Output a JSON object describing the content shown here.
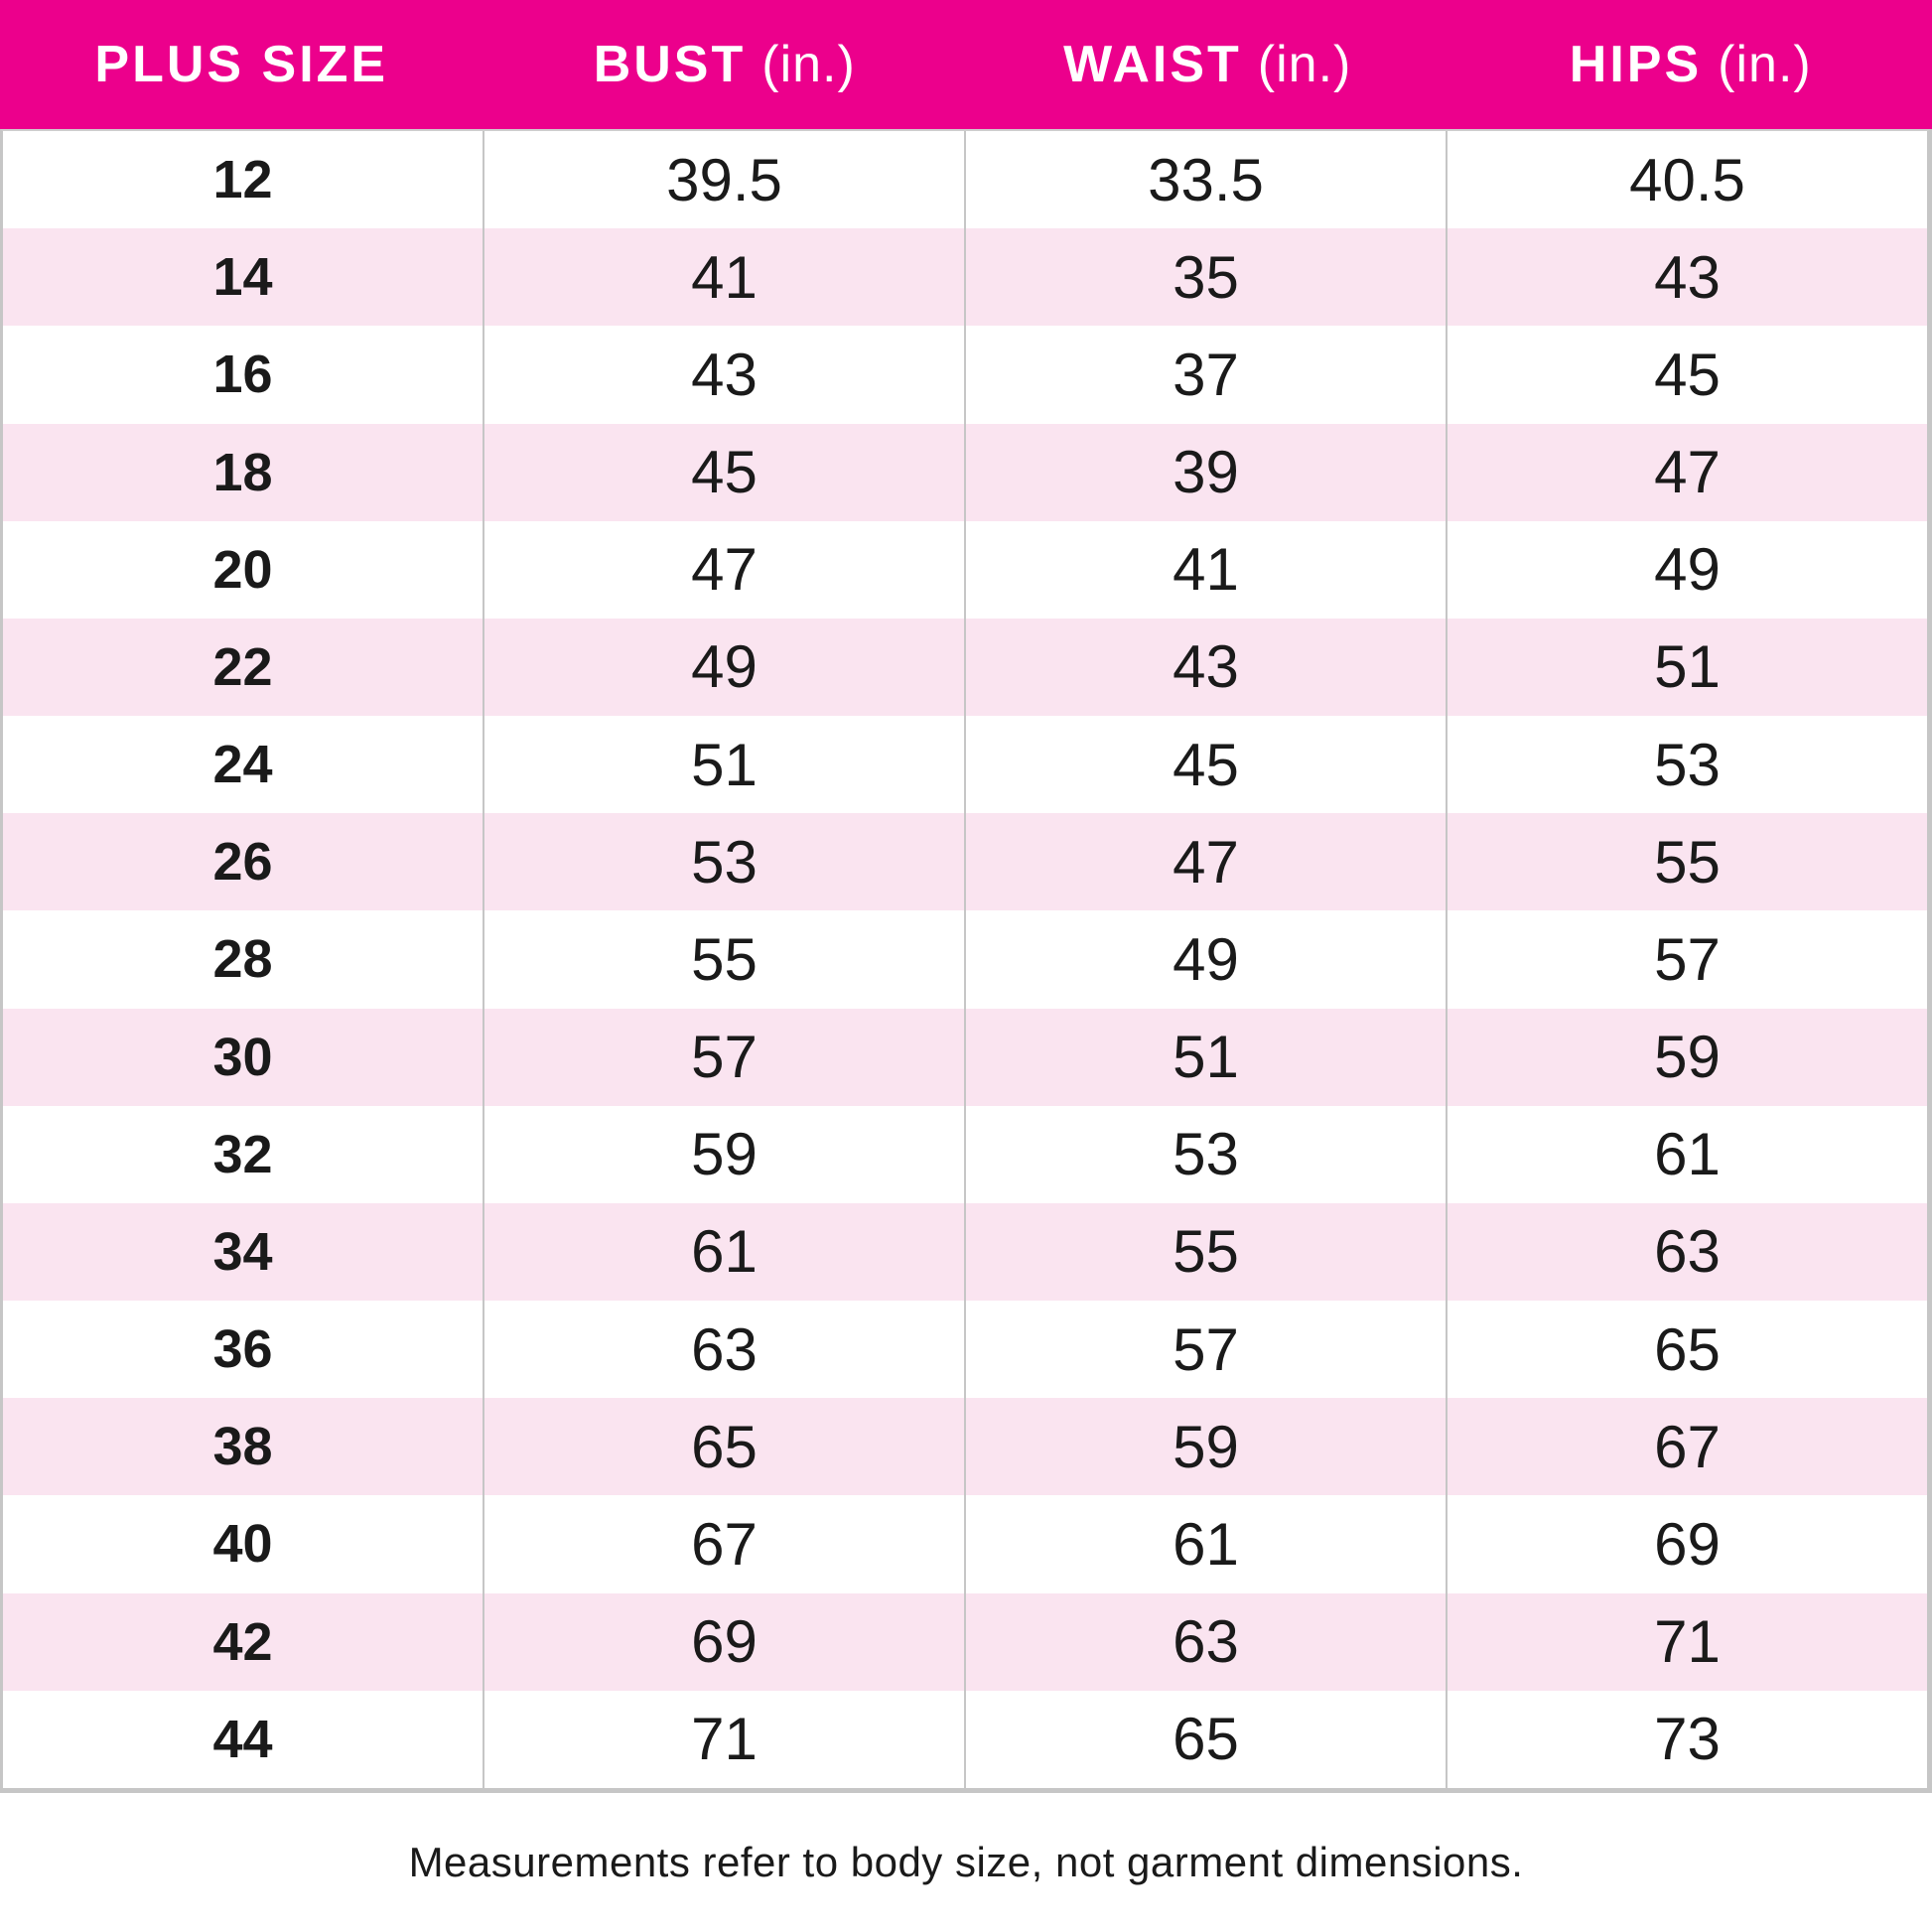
{
  "table": {
    "headers": [
      {
        "label": "PLUS SIZE",
        "unit": ""
      },
      {
        "label": "BUST",
        "unit": "(in.)"
      },
      {
        "label": "WAIST",
        "unit": "(in.)"
      },
      {
        "label": "HIPS",
        "unit": "(in.)"
      }
    ]
  },
  "footer": {
    "note": "Measurements refer to body size, not garment dimensions."
  },
  "colors": {
    "header_bg": "#EC008C",
    "header_text": "#FFFFFF",
    "row_alt_bg": "#FAE4F0",
    "divider": "#C6C6C6",
    "text": "#1A1A1A"
  },
  "chart_data": {
    "type": "table",
    "title": "",
    "columns": [
      "PLUS SIZE",
      "BUST (in.)",
      "WAIST (in.)",
      "HIPS (in.)"
    ],
    "rows": [
      [
        "12",
        "39.5",
        "33.5",
        "40.5"
      ],
      [
        "14",
        "41",
        "35",
        "43"
      ],
      [
        "16",
        "43",
        "37",
        "45"
      ],
      [
        "18",
        "45",
        "39",
        "47"
      ],
      [
        "20",
        "47",
        "41",
        "49"
      ],
      [
        "22",
        "49",
        "43",
        "51"
      ],
      [
        "24",
        "51",
        "45",
        "53"
      ],
      [
        "26",
        "53",
        "47",
        "55"
      ],
      [
        "28",
        "55",
        "49",
        "57"
      ],
      [
        "30",
        "57",
        "51",
        "59"
      ],
      [
        "32",
        "59",
        "53",
        "61"
      ],
      [
        "34",
        "61",
        "55",
        "63"
      ],
      [
        "36",
        "63",
        "57",
        "65"
      ],
      [
        "38",
        "65",
        "59",
        "67"
      ],
      [
        "40",
        "67",
        "61",
        "69"
      ],
      [
        "42",
        "69",
        "63",
        "71"
      ],
      [
        "44",
        "71",
        "65",
        "73"
      ]
    ],
    "footnote": "Measurements refer to body size, not garment dimensions.",
    "layout": {
      "striped": true,
      "stripe_start_row": 2,
      "grid": "vertical-dividers"
    }
  }
}
